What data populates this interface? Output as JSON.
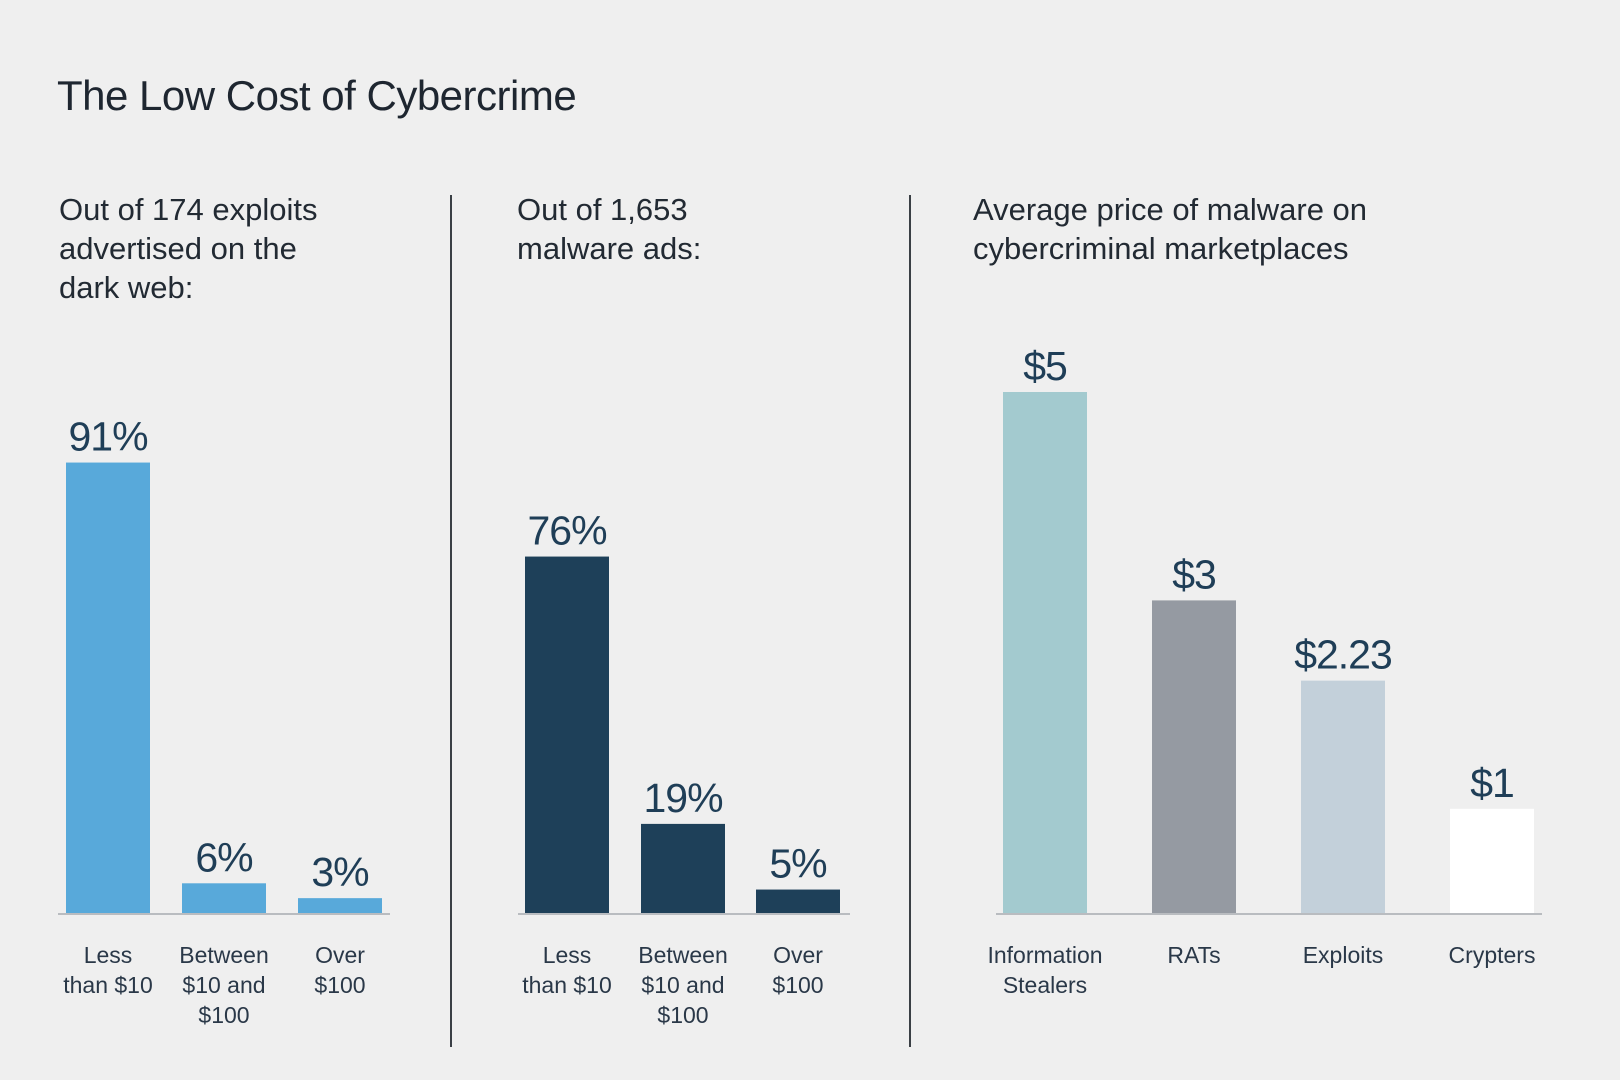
{
  "title": "The Low Cost of Cybercrime",
  "chart_data": [
    {
      "type": "bar",
      "title": "Out of 174 exploits\nadvertised on the\ndark web:",
      "categories": [
        "Less than $10",
        "Between $10 and $100",
        "Over $100"
      ],
      "category_lines": [
        [
          "Less",
          "than $10"
        ],
        [
          "Between",
          "$10 and",
          "$100"
        ],
        [
          "Over",
          "$100"
        ]
      ],
      "values": [
        91,
        6,
        3
      ],
      "value_labels": [
        "91%",
        "6%",
        "3%"
      ],
      "unit": "%",
      "colors": [
        "#58a9da",
        "#58a9da",
        "#58a9da"
      ],
      "ylim": [
        0,
        100
      ],
      "grid": false
    },
    {
      "type": "bar",
      "title": "Out of 1,653\nmalware ads:",
      "categories": [
        "Less than $10",
        "Between $10 and $100",
        "Over $100"
      ],
      "category_lines": [
        [
          "Less",
          "than $10"
        ],
        [
          "Between",
          "$10 and",
          "$100"
        ],
        [
          "Over",
          "$100"
        ]
      ],
      "values": [
        76,
        19,
        5
      ],
      "value_labels": [
        "76%",
        "19%",
        "5%"
      ],
      "unit": "%",
      "colors": [
        "#1e4059",
        "#1e4059",
        "#1e4059"
      ],
      "ylim": [
        0,
        100
      ],
      "grid": false
    },
    {
      "type": "bar",
      "title": "Average price of malware on\ncybercriminal marketplaces",
      "categories": [
        "Information Stealers",
        "RATs",
        "Exploits",
        "Crypters"
      ],
      "category_lines": [
        [
          "Information",
          "Stealers"
        ],
        [
          "RATs"
        ],
        [
          "Exploits"
        ],
        [
          "Crypters"
        ]
      ],
      "values": [
        5,
        3,
        2.23,
        1
      ],
      "value_labels": [
        "$5",
        "$3",
        "$2.23",
        "$1"
      ],
      "unit": "$",
      "colors": [
        "#a3cacf",
        "#959aa2",
        "#c3d0da",
        "#ffffff"
      ],
      "ylim": [
        0,
        5
      ],
      "grid": false
    }
  ]
}
